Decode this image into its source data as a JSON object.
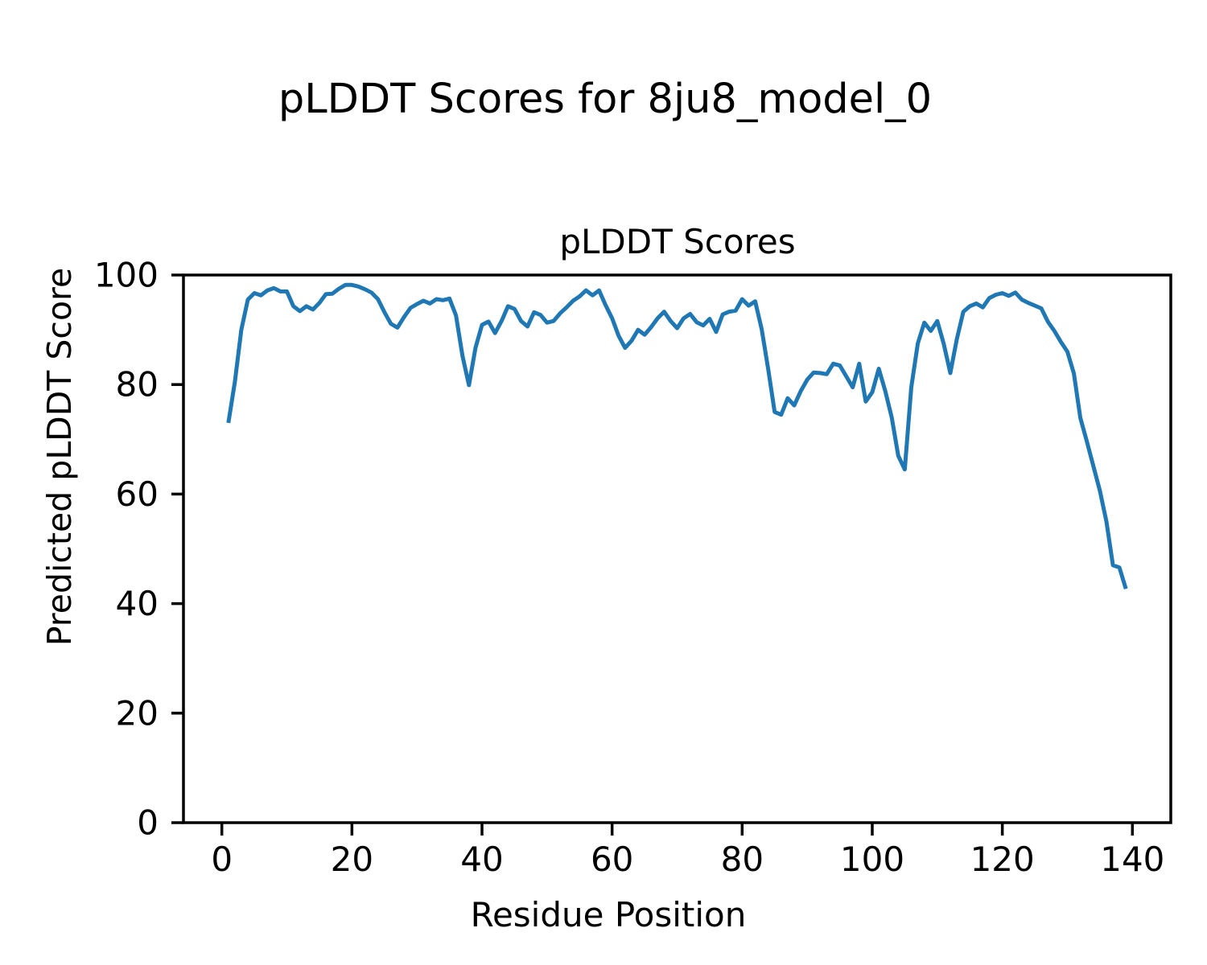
{
  "figure": {
    "suptitle": "pLDDT Scores for 8ju8_model_0",
    "background_color": "#ffffff",
    "text_color": "#000000"
  },
  "chart_data": {
    "type": "line",
    "title": "pLDDT Scores",
    "xlabel": "Residue Position",
    "ylabel": "Predicted pLDDT Score",
    "grid": false,
    "legend": null,
    "line_color": "#1f77b4",
    "xlim": [
      -5.9,
      145.9
    ],
    "ylim": [
      0,
      100
    ],
    "x_ticks": [
      0,
      20,
      40,
      60,
      80,
      100,
      120,
      140
    ],
    "y_ticks": [
      0,
      20,
      40,
      60,
      80,
      100
    ],
    "n_points": 139,
    "series": [
      {
        "name": "pLDDT",
        "x": [
          1,
          2,
          3,
          4,
          5,
          6,
          7,
          8,
          9,
          10,
          11,
          12,
          13,
          14,
          15,
          16,
          17,
          18,
          19,
          20,
          21,
          22,
          23,
          24,
          25,
          26,
          27,
          28,
          29,
          30,
          31,
          32,
          33,
          34,
          35,
          36,
          37,
          38,
          39,
          40,
          41,
          42,
          43,
          44,
          45,
          46,
          47,
          48,
          49,
          50,
          51,
          52,
          53,
          54,
          55,
          56,
          57,
          58,
          59,
          60,
          61,
          62,
          63,
          64,
          65,
          66,
          67,
          68,
          69,
          70,
          71,
          72,
          73,
          74,
          75,
          76,
          77,
          78,
          79,
          80,
          81,
          82,
          83,
          84,
          85,
          86,
          87,
          88,
          89,
          90,
          91,
          92,
          93,
          94,
          95,
          96,
          97,
          98,
          99,
          100,
          101,
          102,
          103,
          104,
          105,
          106,
          107,
          108,
          109,
          110,
          111,
          112,
          113,
          114,
          115,
          116,
          117,
          118,
          119,
          120,
          121,
          122,
          123,
          124,
          125,
          126,
          127,
          128,
          129,
          130,
          131,
          132,
          133,
          134,
          135,
          136,
          137,
          138,
          139
        ],
        "values": [
          73.0,
          80.5,
          90.0,
          95.5,
          96.7,
          96.3,
          97.2,
          97.6,
          97.0,
          97.0,
          94.3,
          93.4,
          94.3,
          93.7,
          94.9,
          96.5,
          96.6,
          97.5,
          98.2,
          98.2,
          97.9,
          97.4,
          96.8,
          95.6,
          93.2,
          91.1,
          90.4,
          92.3,
          94.0,
          94.7,
          95.3,
          94.8,
          95.6,
          95.4,
          95.7,
          92.6,
          85.2,
          79.9,
          86.7,
          90.9,
          91.5,
          89.4,
          91.6,
          94.3,
          93.8,
          91.6,
          90.6,
          93.2,
          92.7,
          91.3,
          91.6,
          93.0,
          94.1,
          95.3,
          96.1,
          97.2,
          96.3,
          97.2,
          94.5,
          92.1,
          88.9,
          86.7,
          88.0,
          90.0,
          89.1,
          90.5,
          92.1,
          93.3,
          91.6,
          90.3,
          92.1,
          92.9,
          91.4,
          90.8,
          92.0,
          89.6,
          92.8,
          93.3,
          93.5,
          95.6,
          94.4,
          95.2,
          90.1,
          82.8,
          75.0,
          74.5,
          77.5,
          76.2,
          78.8,
          80.9,
          82.2,
          82.1,
          81.9,
          83.8,
          83.5,
          81.5,
          79.5,
          83.8,
          76.9,
          78.6,
          82.9,
          78.8,
          74.0,
          67.0,
          64.5,
          79.5,
          87.5,
          91.3,
          89.8,
          91.6,
          87.4,
          82.1,
          88.3,
          93.3,
          94.3,
          94.8,
          94.1,
          95.8,
          96.4,
          96.7,
          96.2,
          96.8,
          95.5,
          94.9,
          94.4,
          93.9,
          91.5,
          89.8,
          87.8,
          86.0,
          82.0,
          73.9,
          69.6,
          65.1,
          60.6,
          55.0,
          47.0,
          46.6,
          42.7
        ]
      }
    ]
  }
}
